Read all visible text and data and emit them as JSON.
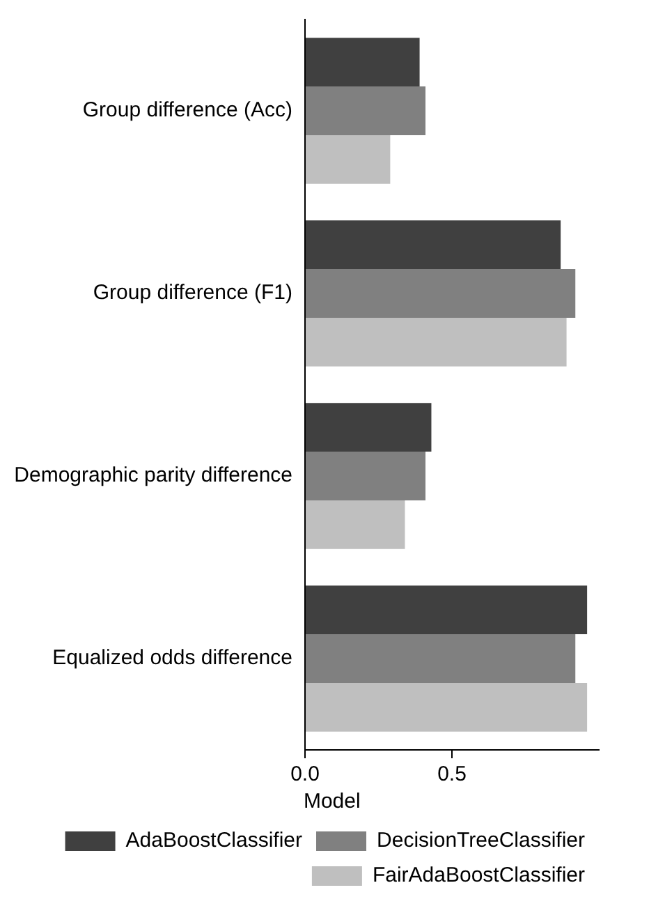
{
  "chart_data": {
    "type": "bar",
    "orientation": "horizontal",
    "categories": [
      "Group difference (Acc)",
      "Group difference (F1)",
      "Demographic parity difference",
      "Equalized odds difference"
    ],
    "series": [
      {
        "name": "AdaBoostClassifier",
        "color": "#404040",
        "values": [
          0.39,
          0.87,
          0.43,
          0.96
        ]
      },
      {
        "name": "DecisionTreeClassifier",
        "color": "#808080",
        "values": [
          0.41,
          0.92,
          0.41,
          0.92
        ]
      },
      {
        "name": "FairAdaBoostClassifier",
        "color": "#bfbfbf",
        "values": [
          0.29,
          0.89,
          0.34,
          0.96
        ]
      }
    ],
    "xlim": [
      0,
      1.0
    ],
    "xticks": [
      {
        "value": 0,
        "label": "0.0"
      },
      {
        "value": 0.5,
        "label": "0.5"
      }
    ],
    "grid": false,
    "legend": "bottom",
    "legend_title": "Model"
  }
}
